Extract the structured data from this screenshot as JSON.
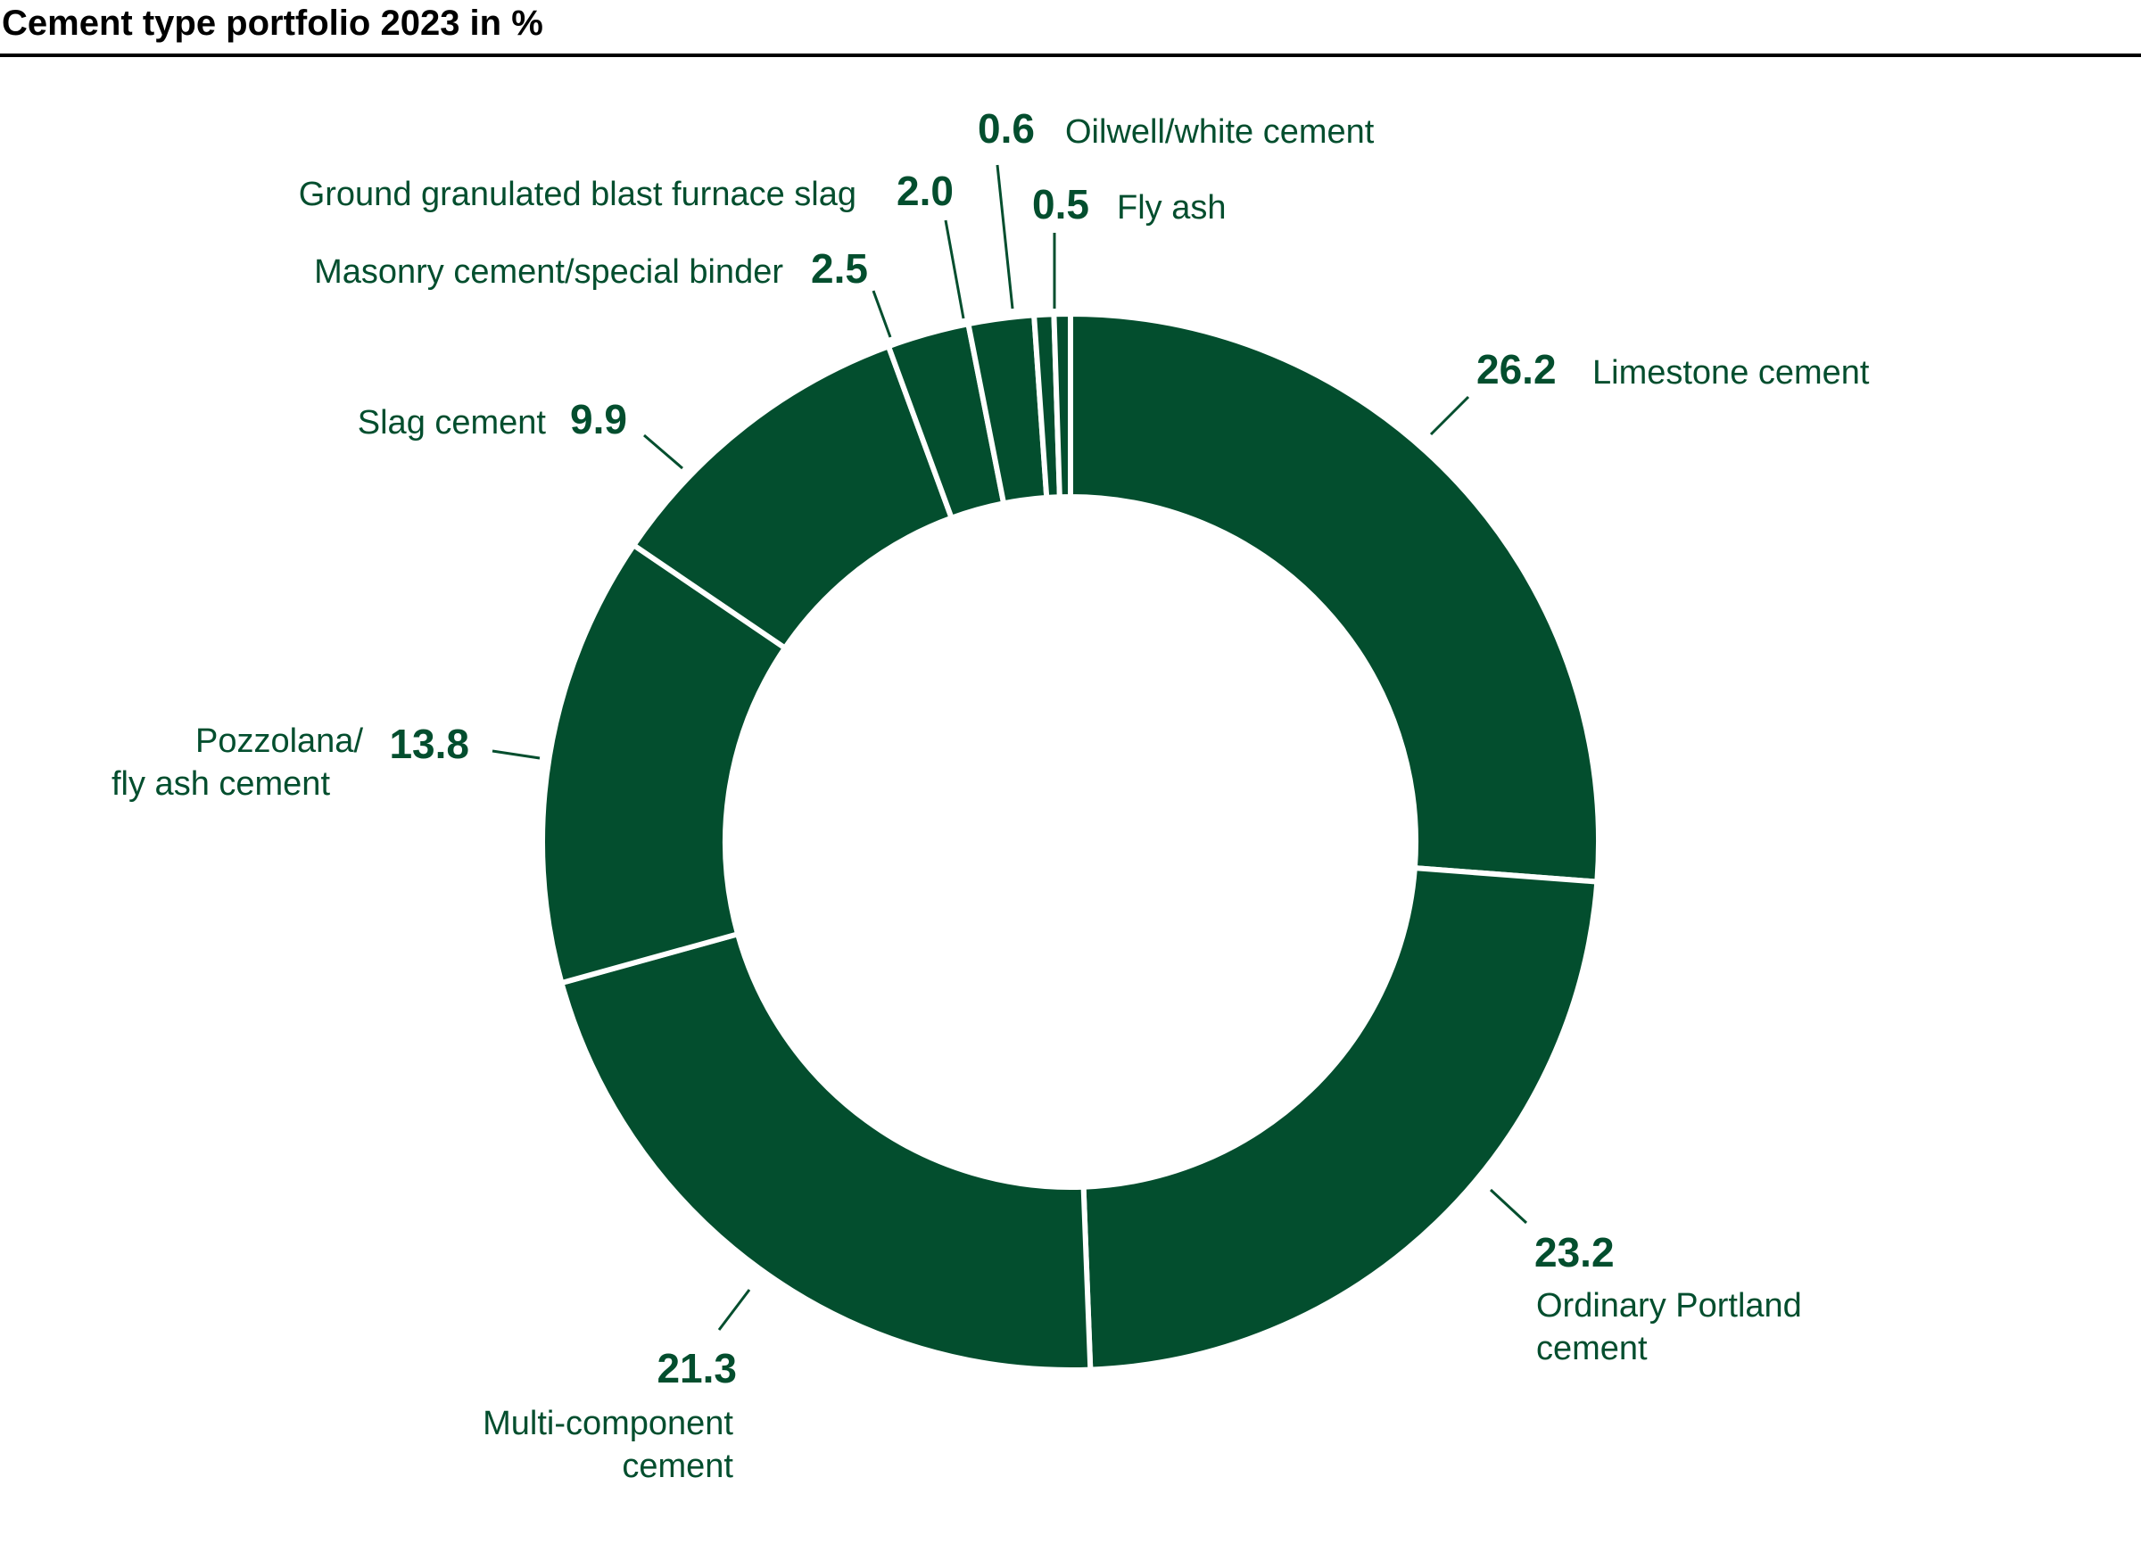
{
  "header": {
    "title": "Cement type portfolio 2023 in %"
  },
  "colors": {
    "slice": "#034E2E",
    "separator": "#FFFFFF",
    "text": "#034E2E",
    "title": "#000000"
  },
  "chart_data": {
    "type": "pie",
    "subtype": "donut",
    "title": "Cement type portfolio 2023 in %",
    "unit": "%",
    "start": "top",
    "direction": "clockwise",
    "categories": [
      "Limestone cement",
      "Ordinary Portland cement",
      "Multi-component cement",
      "Pozzolana/ fly ash cement",
      "Slag cement",
      "Masonry cement/special binder",
      "Ground granulated blast furnace slag",
      "Oilwell/white cement",
      "Fly ash"
    ],
    "values": [
      26.2,
      23.2,
      21.3,
      13.8,
      9.9,
      2.5,
      2.0,
      0.6,
      0.5
    ],
    "labels": [
      {
        "value_text": "26.2",
        "name_lines": [
          "Limestone cement"
        ]
      },
      {
        "value_text": "23.2",
        "name_lines": [
          "Ordinary Portland",
          "cement"
        ]
      },
      {
        "value_text": "21.3",
        "name_lines": [
          "Multi-component",
          "cement"
        ]
      },
      {
        "value_text": "13.8",
        "name_lines": [
          "Pozzolana/",
          "fly ash cement"
        ]
      },
      {
        "value_text": "9.9",
        "name_lines": [
          "Slag cement"
        ]
      },
      {
        "value_text": "2.5",
        "name_lines": [
          "Masonry cement/special binder"
        ]
      },
      {
        "value_text": "2.0",
        "name_lines": [
          "Ground granulated blast furnace slag"
        ]
      },
      {
        "value_text": "0.6",
        "name_lines": [
          "Oilwell/white cement"
        ]
      },
      {
        "value_text": "0.5",
        "name_lines": [
          "Fly ash"
        ]
      }
    ],
    "legend": "none"
  }
}
